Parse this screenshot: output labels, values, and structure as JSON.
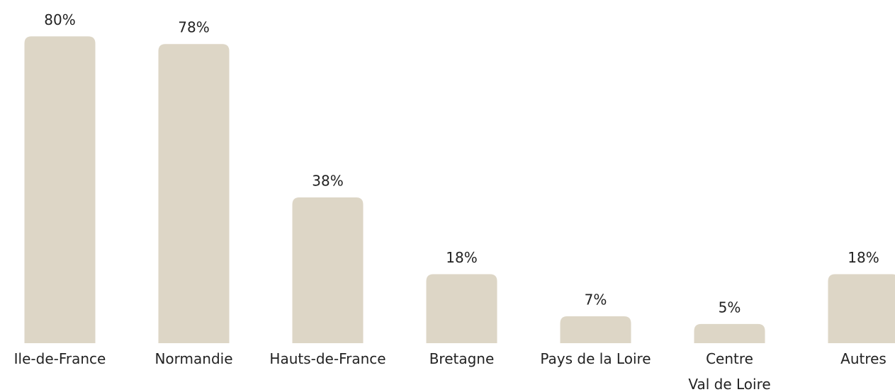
{
  "chart_data": {
    "type": "bar",
    "categories": [
      "Ile-de-France",
      "Normandie",
      "Hauts-de-France",
      "Bretagne",
      "Pays de la Loire",
      "Centre\nVal de Loire",
      "Autres"
    ],
    "values": [
      80,
      78,
      38,
      18,
      7,
      5,
      18
    ],
    "value_labels": [
      "80%",
      "78%",
      "38%",
      "18%",
      "7%",
      "5%",
      "18%"
    ],
    "color": "#ddd6c6"
  }
}
